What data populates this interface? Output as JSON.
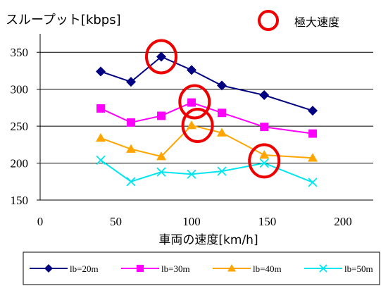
{
  "chart_data": {
    "type": "line",
    "title": "スループット[kbps]",
    "xlabel": "車両の速度[km/h]",
    "ylabel": "",
    "xlim": [
      0,
      220
    ],
    "ylim": [
      150,
      375
    ],
    "x_ticks": [
      "0",
      "50",
      "100",
      "150",
      "200"
    ],
    "x_tick_values": [
      0,
      50,
      100,
      150,
      200
    ],
    "y_ticks": [
      "150",
      "200",
      "250",
      "300",
      "350"
    ],
    "y_tick_values": [
      150,
      200,
      250,
      300,
      350
    ],
    "grid": "horizontal",
    "legend_position": "bottom",
    "x": [
      40,
      60,
      80,
      100,
      120,
      148,
      180
    ],
    "series": [
      {
        "name": "lb=20m",
        "color": "#000080",
        "marker": "diamond",
        "values": [
          324,
          310,
          344,
          326,
          305,
          292,
          271
        ]
      },
      {
        "name": "lb=30m",
        "color": "#ff00ff",
        "marker": "square",
        "values": [
          274,
          255,
          264,
          282,
          268,
          249,
          240
        ]
      },
      {
        "name": "lb=40m",
        "color": "#ffa500",
        "marker": "triangle",
        "values": [
          234,
          219,
          209,
          251,
          241,
          211,
          207
        ]
      },
      {
        "name": "lb=50m",
        "color": "#00e5ee",
        "marker": "x",
        "values": [
          204,
          175,
          188,
          185,
          189,
          200,
          174
        ]
      }
    ],
    "annotation": {
      "label": "極大速度",
      "color": "#ee0000",
      "circled_points": [
        {
          "x": 80,
          "y": 344
        },
        {
          "x": 102,
          "y": 283
        },
        {
          "x": 104,
          "y": 251
        },
        {
          "x": 148,
          "y": 203
        }
      ]
    }
  }
}
